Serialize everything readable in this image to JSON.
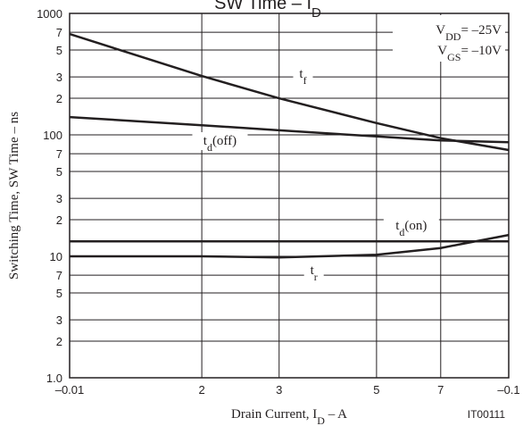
{
  "chart_data": {
    "type": "line",
    "title": {
      "main": "SW Time – I",
      "sub": "D"
    },
    "x_label": {
      "main": "Drain Current, I",
      "sub": "D",
      "rest": " – A"
    },
    "y_label": "Switching Time, SW Time  –  ns",
    "figure_code": "IT00111",
    "conditions": [
      {
        "main": "V",
        "sub": "DD",
        "rest": "= –25V"
      },
      {
        "main": "V",
        "sub": "GS",
        "rest": "= –10V"
      }
    ],
    "x_log": true,
    "y_log": true,
    "grid": true,
    "x": [
      -0.01,
      -0.02,
      -0.03,
      -0.05,
      -0.07,
      -0.1
    ],
    "xlim": [
      -0.01,
      -0.1
    ],
    "xticks": [
      {
        "value": -0.01,
        "label": "–0.01"
      },
      {
        "value": -0.02,
        "label": "2"
      },
      {
        "value": -0.03,
        "label": "3"
      },
      {
        "value": -0.05,
        "label": "5"
      },
      {
        "value": -0.07,
        "label": "7"
      },
      {
        "value": -0.1,
        "label": "–0.1"
      }
    ],
    "ylim": [
      1,
      1000
    ],
    "yticks": [
      {
        "value": 1,
        "label": "1.0"
      },
      {
        "value": 2,
        "label": "2"
      },
      {
        "value": 3,
        "label": "3"
      },
      {
        "value": 5,
        "label": "5"
      },
      {
        "value": 7,
        "label": "7"
      },
      10,
      {
        "value": 20,
        "label": "2"
      },
      {
        "value": 30,
        "label": "3"
      },
      {
        "value": 50,
        "label": "5"
      },
      {
        "value": 70,
        "label": "7"
      },
      100,
      {
        "value": 200,
        "label": "2"
      },
      {
        "value": 300,
        "label": "3"
      },
      {
        "value": 500,
        "label": "5"
      },
      {
        "value": 700,
        "label": "7"
      },
      1000
    ],
    "series": [
      {
        "name": "t",
        "name_sub": "f",
        "color": "#231f20",
        "values": [
          676,
          305,
          200,
          125,
          94,
          75
        ]
      },
      {
        "name": "t",
        "name_sub": "d",
        "name_rest": "(off)",
        "color": "#231f20",
        "values": [
          140,
          120,
          109,
          97,
          90,
          87
        ]
      },
      {
        "name": "t",
        "name_sub": "d",
        "name_rest": "(on)",
        "color": "#231f20",
        "values": [
          13.3,
          13.3,
          13.3,
          13.3,
          13.3,
          13.3
        ]
      },
      {
        "name": "t",
        "name_sub": "r",
        "color": "#231f20",
        "values": [
          10,
          10,
          9.8,
          10.3,
          11.7,
          15
        ]
      }
    ]
  }
}
